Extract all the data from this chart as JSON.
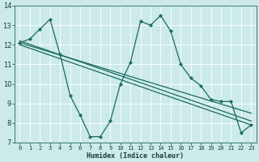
{
  "xlabel": "Humidex (Indice chaleur)",
  "xlim": [
    -0.5,
    23.5
  ],
  "ylim": [
    7,
    14
  ],
  "yticks": [
    7,
    8,
    9,
    10,
    11,
    12,
    13,
    14
  ],
  "xticks": [
    0,
    1,
    2,
    3,
    4,
    5,
    6,
    7,
    8,
    9,
    10,
    11,
    12,
    13,
    14,
    15,
    16,
    17,
    18,
    19,
    20,
    21,
    22,
    23
  ],
  "bg_color": "#cceaea",
  "grid_color": "#b0d8d8",
  "line_color": "#1a6b5e",
  "series": [
    {
      "x": [
        0,
        1,
        2,
        3,
        4,
        5,
        6,
        7,
        8,
        9,
        10,
        11,
        12,
        13,
        14,
        15,
        16,
        17,
        18,
        19,
        20,
        21,
        22,
        23
      ],
      "y": [
        12.1,
        12.3,
        12.8,
        13.3,
        11.5,
        9.4,
        8.4,
        7.3,
        7.3,
        8.1,
        10.0,
        11.1,
        13.2,
        13.0,
        13.5,
        12.7,
        11.0,
        10.3,
        9.9,
        9.2,
        9.1,
        9.1,
        7.5,
        7.9
      ],
      "marker": true
    },
    {
      "x": [
        0,
        23
      ],
      "y": [
        12.2,
        8.1
      ],
      "marker": false
    },
    {
      "x": [
        0,
        23
      ],
      "y": [
        12.1,
        8.5
      ],
      "marker": false
    },
    {
      "x": [
        0,
        23
      ],
      "y": [
        12.0,
        7.9
      ],
      "marker": false
    }
  ]
}
